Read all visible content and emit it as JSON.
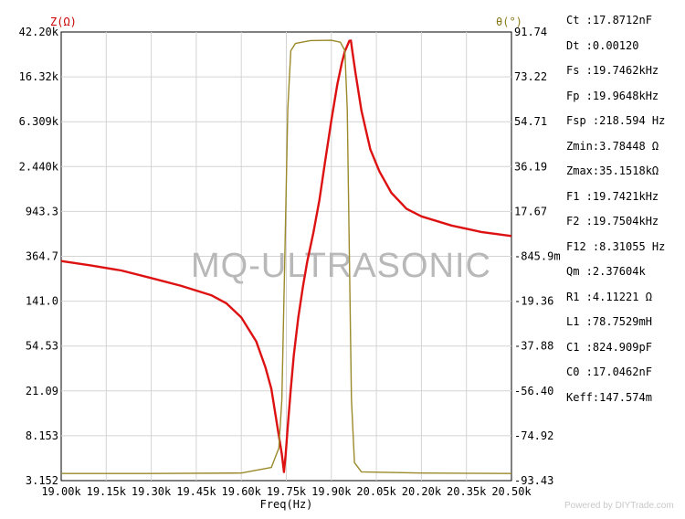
{
  "chart_data": {
    "type": "line",
    "x_label": "Freq(Hz)",
    "x_ticks": [
      "19.00k",
      "19.15k",
      "19.30k",
      "19.45k",
      "19.60k",
      "19.75k",
      "19.90k",
      "20.05k",
      "20.20k",
      "20.35k",
      "20.50k"
    ],
    "xlim": [
      19000,
      20500
    ],
    "left_axis": {
      "label": "Z(Ω)",
      "scale": "log",
      "ticks": [
        "42.20k",
        "16.32k",
        "6.309k",
        "2.440k",
        "943.3",
        "364.7",
        "141.0",
        "54.53",
        "21.09",
        "8.153",
        "3.152"
      ],
      "ylim": [
        3.152,
        42200
      ]
    },
    "right_axis": {
      "label": "θ(°)",
      "ticks": [
        "91.74",
        "73.22",
        "54.71",
        "36.19",
        "17.67",
        "-845.9m",
        "-19.36",
        "-37.88",
        "-56.40",
        "-74.92",
        "-93.43"
      ],
      "ylim": [
        -93.43,
        91.74
      ]
    },
    "series": [
      {
        "axis": "left",
        "color": "#dd1111",
        "points": [
          [
            19000,
            330
          ],
          [
            19100,
            300
          ],
          [
            19200,
            270
          ],
          [
            19300,
            230
          ],
          [
            19400,
            195
          ],
          [
            19500,
            160
          ],
          [
            19550,
            135
          ],
          [
            19600,
            100
          ],
          [
            19650,
            60
          ],
          [
            19680,
            35
          ],
          [
            19700,
            22
          ],
          [
            19720,
            10
          ],
          [
            19735,
            5.5
          ],
          [
            19742,
            3.78
          ],
          [
            19748,
            5.5
          ],
          [
            19755,
            10
          ],
          [
            19765,
            22
          ],
          [
            19775,
            45
          ],
          [
            19790,
            100
          ],
          [
            19805,
            190
          ],
          [
            19820,
            330
          ],
          [
            19840,
            600
          ],
          [
            19860,
            1200
          ],
          [
            19880,
            2800
          ],
          [
            19900,
            6500
          ],
          [
            19920,
            14000
          ],
          [
            19935,
            22000
          ],
          [
            19945,
            28000
          ],
          [
            19960,
            35000
          ],
          [
            19965,
            35150
          ],
          [
            19970,
            28000
          ],
          [
            19980,
            18000
          ],
          [
            20000,
            8000
          ],
          [
            20030,
            3500
          ],
          [
            20060,
            2200
          ],
          [
            20100,
            1400
          ],
          [
            20150,
            1000
          ],
          [
            20200,
            850
          ],
          [
            20300,
            700
          ],
          [
            20400,
            610
          ],
          [
            20500,
            560
          ]
        ]
      },
      {
        "axis": "right",
        "color": "#9a8a2a",
        "points": [
          [
            19000,
            -90.5
          ],
          [
            19300,
            -90.5
          ],
          [
            19600,
            -90.3
          ],
          [
            19700,
            -88
          ],
          [
            19725,
            -80
          ],
          [
            19735,
            -60
          ],
          [
            19745,
            0
          ],
          [
            19755,
            60
          ],
          [
            19765,
            84
          ],
          [
            19780,
            87
          ],
          [
            19830,
            88.2
          ],
          [
            19900,
            88.3
          ],
          [
            19930,
            87.5
          ],
          [
            19945,
            84
          ],
          [
            19953,
            60
          ],
          [
            19960,
            0
          ],
          [
            19967,
            -60
          ],
          [
            19977,
            -86
          ],
          [
            20000,
            -89.8
          ],
          [
            20200,
            -90.3
          ],
          [
            20500,
            -90.5
          ]
        ]
      }
    ],
    "watermark": "MQ-ULTRASONIC"
  },
  "parameters": [
    {
      "label": "Ct  :17.8712nF"
    },
    {
      "label": "Dt  :0.00120"
    },
    {
      "label": "Fs  :19.7462kHz"
    },
    {
      "label": "Fp  :19.9648kHz"
    },
    {
      "label": "Fsp :218.594 Hz"
    },
    {
      "label": "Zmin:3.78448 Ω"
    },
    {
      "label": "Zmax:35.1518kΩ"
    },
    {
      "label": "F1  :19.7421kHz"
    },
    {
      "label": "F2  :19.7504kHz"
    },
    {
      "label": "F12 :8.31055 Hz"
    },
    {
      "label": "Qm  :2.37604k"
    },
    {
      "label": "R1  :4.11221 Ω"
    },
    {
      "label": "L1  :78.7529mH"
    },
    {
      "label": "C1  :824.909pF"
    },
    {
      "label": "C0  :17.0462nF"
    },
    {
      "label": "Keff:147.574m"
    }
  ],
  "credit": "Powered by DIYTrade.com"
}
